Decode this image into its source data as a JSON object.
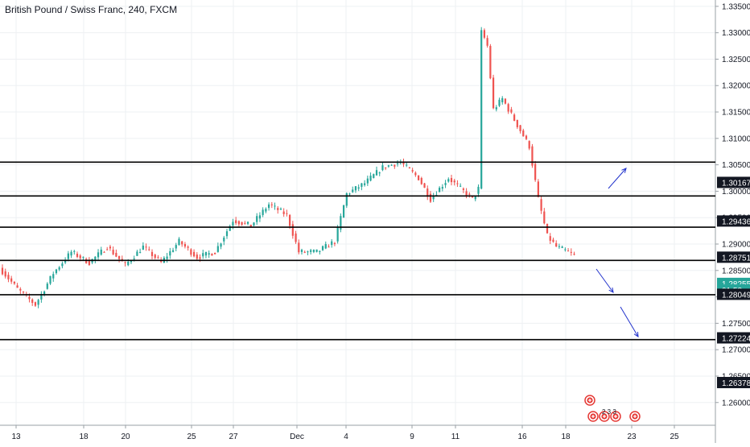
{
  "header": {
    "title": "British Pound / Swiss Franc, 240, FXCM"
  },
  "colors": {
    "up": "#26a69a",
    "down": "#ef5350",
    "grid": "#eef0f3",
    "axis_text": "#131722",
    "level_line": "#000000",
    "badge_dark": "#131722",
    "badge_price": "#26a69a",
    "arrow": "#2233cc",
    "event_icon": "#e53935"
  },
  "chart_data": {
    "type": "candlestick",
    "title": "British Pound / Swiss Franc, 240, FXCM",
    "ylim": [
      1.256,
      1.3362
    ],
    "y_ticks": [
      "1.33500",
      "1.33000",
      "1.32500",
      "1.32000",
      "1.31500",
      "1.31000",
      "1.30500",
      "1.30000",
      "1.29500",
      "1.29000",
      "1.28500",
      "1.28000",
      "1.27500",
      "1.27000",
      "1.26500",
      "1.26000"
    ],
    "x_ticks": [
      "13",
      "18",
      "20",
      "25",
      "27",
      "Dec",
      "4",
      "9",
      "11",
      "16",
      "18",
      "23",
      "25"
    ],
    "grid": true,
    "horizontal_levels": [
      1.3055,
      1.2991,
      1.2932,
      1.2869,
      1.2804,
      1.2719
    ],
    "price_badges": [
      {
        "label": "1.30167",
        "value": 1.30167,
        "style": "dark"
      },
      {
        "label": "1.29436",
        "value": 1.29436,
        "style": "dark"
      },
      {
        "label": "1.28751",
        "value": 1.28751,
        "style": "dark"
      },
      {
        "label": "1.28255",
        "value": 1.28255,
        "style": "price"
      },
      {
        "label": "01:58",
        "value": 1.2813,
        "style": "price"
      },
      {
        "label": "1.28049",
        "value": 1.28049,
        "style": "dark"
      },
      {
        "label": "1.27224",
        "value": 1.27224,
        "style": "dark"
      },
      {
        "label": "1.26378",
        "value": 1.26378,
        "style": "dark"
      }
    ],
    "anchors": [
      {
        "t": 0,
        "p": 1.2855
      },
      {
        "t": 6,
        "p": 1.2815
      },
      {
        "t": 12,
        "p": 1.2785
      },
      {
        "t": 18,
        "p": 1.2845
      },
      {
        "t": 24,
        "p": 1.2885
      },
      {
        "t": 30,
        "p": 1.2865
      },
      {
        "t": 36,
        "p": 1.2895
      },
      {
        "t": 42,
        "p": 1.286
      },
      {
        "t": 48,
        "p": 1.2895
      },
      {
        "t": 54,
        "p": 1.2865
      },
      {
        "t": 60,
        "p": 1.2905
      },
      {
        "t": 66,
        "p": 1.2875
      },
      {
        "t": 72,
        "p": 1.2885
      },
      {
        "t": 78,
        "p": 1.2945
      },
      {
        "t": 84,
        "p": 1.2935
      },
      {
        "t": 90,
        "p": 1.2975
      },
      {
        "t": 96,
        "p": 1.2955
      },
      {
        "t": 100,
        "p": 1.2885
      },
      {
        "t": 106,
        "p": 1.2885
      },
      {
        "t": 112,
        "p": 1.2905
      },
      {
        "t": 116,
        "p": 1.2995
      },
      {
        "t": 122,
        "p": 1.3015
      },
      {
        "t": 128,
        "p": 1.3045
      },
      {
        "t": 134,
        "p": 1.3055
      },
      {
        "t": 140,
        "p": 1.3025
      },
      {
        "t": 144,
        "p": 1.2985
      },
      {
        "t": 150,
        "p": 1.3025
      },
      {
        "t": 154,
        "p": 1.3005
      },
      {
        "t": 158,
        "p": 1.2985
      },
      {
        "t": 160,
        "p": 1.3005
      },
      {
        "t": 161,
        "p": 1.3305
      },
      {
        "t": 163,
        "p": 1.3275
      },
      {
        "t": 165,
        "p": 1.3155
      },
      {
        "t": 168,
        "p": 1.3175
      },
      {
        "t": 171,
        "p": 1.3145
      },
      {
        "t": 174,
        "p": 1.3115
      },
      {
        "t": 177,
        "p": 1.3085
      },
      {
        "t": 180,
        "p": 1.2985
      },
      {
        "t": 183,
        "p": 1.2915
      },
      {
        "t": 186,
        "p": 1.2895
      },
      {
        "t": 190,
        "p": 1.2885
      },
      {
        "t": 192,
        "p": 1.2878
      }
    ]
  }
}
